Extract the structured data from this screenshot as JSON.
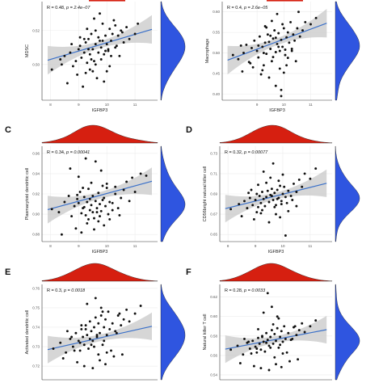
{
  "chart_data": [
    {
      "type": "scatter",
      "letter": "",
      "xlabel": "IGFBP3",
      "ylabel": "MDSC",
      "stat": {
        "r": "R = 0.48, ",
        "p": "p = 2.4e−07"
      },
      "xticks": [
        "8",
        "9",
        "10",
        "11"
      ],
      "xlim": [
        7.7,
        11.8
      ],
      "yticks": [
        "0.50",
        "0.52"
      ],
      "ylim": [
        0.479,
        0.537
      ],
      "fit": {
        "x": [
          7.9,
          11.6
        ],
        "y": [
          0.5025,
          0.5207
        ]
      },
      "x": [
        8.05,
        8.35,
        8.5,
        8.7,
        8.8,
        8.9,
        9.0,
        9.05,
        9.1,
        9.2,
        9.25,
        9.3,
        9.35,
        9.4,
        9.45,
        9.5,
        9.55,
        9.6,
        9.6,
        9.7,
        9.75,
        9.8,
        9.85,
        9.9,
        9.95,
        10.0,
        10.05,
        10.1,
        10.15,
        10.2,
        10.25,
        10.3,
        10.35,
        10.4,
        10.5,
        10.6,
        10.7,
        10.8,
        11.0,
        11.1,
        8.6,
        8.95,
        9.15,
        9.4,
        9.65,
        9.9,
        10.1,
        10.45,
        9.3,
        9.55,
        9.75,
        9.25,
        9.05,
        9.85,
        10.0,
        9.45,
        8.75,
        9.6,
        9.95,
        10.3,
        8.4,
        9.7,
        10.15,
        9.35,
        9.8,
        10.55,
        9.2,
        9.5,
        10.05
      ],
      "y": [
        0.497,
        0.503,
        0.505,
        0.507,
        0.499,
        0.502,
        0.509,
        0.511,
        0.504,
        0.507,
        0.513,
        0.501,
        0.515,
        0.506,
        0.518,
        0.509,
        0.502,
        0.512,
        0.52,
        0.507,
        0.514,
        0.51,
        0.524,
        0.506,
        0.517,
        0.512,
        0.509,
        0.521,
        0.514,
        0.518,
        0.526,
        0.51,
        0.511,
        0.517,
        0.52,
        0.513,
        0.522,
        0.515,
        0.518,
        0.524,
        0.489,
        0.494,
        0.487,
        0.497,
        0.492,
        0.49,
        0.499,
        0.505,
        0.521,
        0.527,
        0.53,
        0.495,
        0.516,
        0.514,
        0.496,
        0.503,
        0.512,
        0.5,
        0.508,
        0.523,
        0.5,
        0.516,
        0.505,
        0.509,
        0.503,
        0.519,
        0.515,
        0.496,
        0.508
      ]
    },
    {
      "type": "scatter",
      "letter": "",
      "xlabel": "IGFBP3",
      "ylabel": "Macrophage",
      "stat": {
        "r": "R = 0.4, ",
        "p": "p = 2.6e−05"
      },
      "xticks": [
        "9",
        "10",
        "11"
      ],
      "xlim": [
        7.7,
        11.8
      ],
      "yticks": [
        "0.40",
        "0.45",
        "0.50",
        "0.55",
        "0.60"
      ],
      "ylim": [
        0.385,
        0.625
      ],
      "fit": {
        "x": [
          7.9,
          11.6
        ],
        "y": [
          0.4825,
          0.5725
        ]
      },
      "x": [
        8.1,
        8.3,
        8.5,
        8.6,
        8.7,
        8.8,
        8.9,
        9.0,
        9.05,
        9.1,
        9.2,
        9.25,
        9.3,
        9.35,
        9.4,
        9.5,
        9.55,
        9.6,
        9.65,
        9.7,
        9.75,
        9.8,
        9.85,
        9.9,
        9.95,
        10.0,
        10.05,
        10.1,
        10.15,
        10.2,
        10.25,
        10.3,
        10.35,
        10.4,
        10.5,
        10.6,
        10.7,
        10.8,
        11.0,
        11.2,
        8.45,
        8.85,
        9.15,
        9.45,
        9.7,
        9.9,
        10.1,
        10.45,
        9.3,
        9.55,
        9.75,
        9.25,
        9.05,
        9.85,
        10.0,
        9.45,
        8.75,
        9.6,
        9.95,
        10.3,
        8.4,
        9.7,
        10.15,
        9.35,
        9.8,
        10.55,
        9.2,
        9.5,
        10.05,
        9.9
      ],
      "y": [
        0.495,
        0.485,
        0.5,
        0.52,
        0.478,
        0.512,
        0.53,
        0.505,
        0.489,
        0.54,
        0.515,
        0.47,
        0.525,
        0.498,
        0.545,
        0.51,
        0.48,
        0.535,
        0.555,
        0.502,
        0.522,
        0.548,
        0.462,
        0.532,
        0.515,
        0.56,
        0.495,
        0.538,
        0.55,
        0.525,
        0.575,
        0.51,
        0.545,
        0.53,
        0.56,
        0.54,
        0.555,
        0.575,
        0.57,
        0.585,
        0.455,
        0.465,
        0.448,
        0.44,
        0.42,
        0.41,
        0.47,
        0.48,
        0.565,
        0.578,
        0.595,
        0.5,
        0.518,
        0.505,
        0.452,
        0.527,
        0.475,
        0.49,
        0.57,
        0.505,
        0.518,
        0.537,
        0.488,
        0.562,
        0.515,
        0.6,
        0.458,
        0.542,
        0.508,
        0.395
      ]
    },
    {
      "type": "scatter",
      "letter": "C",
      "xlabel": "IGFBP3",
      "ylabel": "Plasmacytoid dendritic cell",
      "stat": {
        "r": "R = 0.34, ",
        "p": "p = 0.00041"
      },
      "xticks": [
        "8",
        "9",
        "10",
        "11"
      ],
      "xlim": [
        7.7,
        11.8
      ],
      "yticks": [
        "0.88",
        "0.90",
        "0.92",
        "0.94",
        "0.96"
      ],
      "ylim": [
        0.873,
        0.967
      ],
      "fit": {
        "x": [
          7.9,
          11.6
        ],
        "y": [
          0.9045,
          0.9325
        ]
      },
      "x": [
        8.05,
        8.3,
        8.5,
        8.65,
        8.75,
        8.85,
        8.95,
        9.0,
        9.05,
        9.1,
        9.15,
        9.2,
        9.25,
        9.3,
        9.35,
        9.4,
        9.45,
        9.5,
        9.55,
        9.6,
        9.65,
        9.7,
        9.75,
        9.8,
        9.85,
        9.9,
        9.95,
        10.0,
        10.1,
        10.2,
        10.3,
        10.4,
        10.5,
        10.6,
        10.7,
        10.8,
        10.9,
        11.0,
        11.2,
        11.4,
        8.4,
        8.9,
        9.1,
        9.3,
        9.55,
        9.7,
        9.9,
        10.1,
        10.45,
        9.15,
        9.45,
        9.8,
        10.3,
        8.7,
        9.6,
        9.25,
        9.0,
        9.35,
        9.85,
        10.05,
        9.5,
        8.95,
        10.2,
        9.75,
        9.4,
        9.65,
        10.0,
        9.2
      ],
      "y": [
        0.905,
        0.902,
        0.912,
        0.918,
        0.898,
        0.908,
        0.915,
        0.911,
        0.922,
        0.901,
        0.906,
        0.917,
        0.899,
        0.912,
        0.925,
        0.904,
        0.909,
        0.918,
        0.896,
        0.913,
        0.906,
        0.921,
        0.91,
        0.903,
        0.928,
        0.916,
        0.908,
        0.93,
        0.912,
        0.904,
        0.92,
        0.906,
        0.916,
        0.924,
        0.932,
        0.913,
        0.936,
        0.922,
        0.94,
        0.938,
        0.88,
        0.886,
        0.882,
        0.891,
        0.885,
        0.893,
        0.889,
        0.895,
        0.899,
        0.926,
        0.931,
        0.943,
        0.927,
        0.945,
        0.952,
        0.955,
        0.937,
        0.895,
        0.914,
        0.9,
        0.902,
        0.919,
        0.911,
        0.898,
        0.915,
        0.902,
        0.926,
        0.907
      ]
    },
    {
      "type": "scatter",
      "letter": "D",
      "xlabel": "IGFBP3",
      "ylabel": "CD56bright natural killer cell",
      "stat": {
        "r": "R = 0.32, ",
        "p": "p = 0.00077"
      },
      "xticks": [
        "8",
        "9",
        "10",
        "11"
      ],
      "xlim": [
        7.7,
        11.8
      ],
      "yticks": [
        "0.65",
        "0.67",
        "0.69",
        "0.71",
        "0.73"
      ],
      "ylim": [
        0.643,
        0.737
      ],
      "fit": {
        "x": [
          7.9,
          11.6
        ],
        "y": [
          0.6755,
          0.7005
        ]
      },
      "x": [
        8.1,
        8.4,
        8.6,
        8.7,
        8.8,
        8.9,
        9.0,
        9.05,
        9.1,
        9.15,
        9.2,
        9.25,
        9.3,
        9.35,
        9.4,
        9.45,
        9.5,
        9.55,
        9.6,
        9.65,
        9.7,
        9.75,
        9.8,
        9.85,
        9.9,
        9.95,
        10.0,
        10.05,
        10.1,
        10.15,
        10.2,
        10.3,
        10.4,
        10.5,
        10.6,
        10.7,
        10.8,
        11.0,
        11.2,
        8.5,
        8.95,
        9.2,
        9.5,
        9.75,
        9.9,
        10.2,
        10.5,
        9.3,
        9.65,
        9.85,
        9.1,
        9.55,
        9.4,
        10.0,
        8.75,
        9.25,
        9.7,
        9.95,
        10.35,
        8.85,
        9.05,
        9.6,
        9.8,
        10.1
      ],
      "y": [
        0.675,
        0.68,
        0.683,
        0.676,
        0.686,
        0.679,
        0.684,
        0.69,
        0.677,
        0.688,
        0.681,
        0.692,
        0.685,
        0.678,
        0.687,
        0.693,
        0.682,
        0.689,
        0.695,
        0.684,
        0.691,
        0.679,
        0.694,
        0.686,
        0.698,
        0.683,
        0.69,
        0.697,
        0.687,
        0.681,
        0.693,
        0.688,
        0.7,
        0.692,
        0.704,
        0.697,
        0.71,
        0.705,
        0.715,
        0.668,
        0.665,
        0.671,
        0.662,
        0.67,
        0.667,
        0.673,
        0.678,
        0.712,
        0.72,
        0.703,
        0.699,
        0.706,
        0.701,
        0.709,
        0.691,
        0.674,
        0.677,
        0.68,
        0.684,
        0.694,
        0.672,
        0.688,
        0.685,
        0.649
      ]
    },
    {
      "type": "scatter",
      "letter": "E",
      "xlabel": "",
      "ylabel": "Activated dendritic cell",
      "stat": {
        "r": "R = 0.3, ",
        "p": "p = 0.0018"
      },
      "xticks": [],
      "xlim": [
        7.7,
        11.8
      ],
      "yticks": [
        "0.72",
        "0.73",
        "0.74",
        "0.75",
        "0.76"
      ],
      "ylim": [
        0.713,
        0.762
      ],
      "fit": {
        "x": [
          7.9,
          11.6
        ],
        "y": [
          0.7285,
          0.7405
        ]
      },
      "x": [
        8.1,
        8.35,
        8.55,
        8.7,
        8.8,
        8.9,
        9.0,
        9.05,
        9.1,
        9.15,
        9.2,
        9.25,
        9.3,
        9.35,
        9.4,
        9.45,
        9.5,
        9.55,
        9.6,
        9.65,
        9.7,
        9.75,
        9.8,
        9.85,
        9.9,
        9.95,
        10.0,
        10.05,
        10.1,
        10.2,
        10.3,
        10.4,
        10.5,
        10.6,
        10.7,
        10.8,
        11.0,
        11.2,
        8.45,
        8.95,
        9.2,
        9.5,
        9.75,
        9.95,
        10.25,
        10.55,
        9.3,
        9.6,
        9.85,
        9.1,
        9.55,
        9.4,
        10.0,
        8.75,
        9.25,
        9.7,
        9.9,
        10.35,
        8.85,
        9.05,
        9.65,
        9.8,
        10.15,
        8.6,
        9.45,
        10.45
      ],
      "y": [
        0.729,
        0.732,
        0.727,
        0.734,
        0.73,
        0.737,
        0.733,
        0.728,
        0.739,
        0.735,
        0.731,
        0.741,
        0.736,
        0.729,
        0.743,
        0.738,
        0.733,
        0.74,
        0.745,
        0.735,
        0.742,
        0.737,
        0.746,
        0.731,
        0.74,
        0.744,
        0.736,
        0.748,
        0.739,
        0.742,
        0.738,
        0.746,
        0.741,
        0.744,
        0.749,
        0.743,
        0.747,
        0.751,
        0.724,
        0.722,
        0.72,
        0.719,
        0.723,
        0.721,
        0.725,
        0.726,
        0.752,
        0.755,
        0.748,
        0.741,
        0.73,
        0.734,
        0.727,
        0.735,
        0.739,
        0.726,
        0.733,
        0.737,
        0.728,
        0.732,
        0.736,
        0.75,
        0.728,
        0.738,
        0.731,
        0.747
      ]
    },
    {
      "type": "scatter",
      "letter": "F",
      "xlabel": "",
      "ylabel": "Natural killer T cell",
      "stat": {
        "r": "R = 0.28, ",
        "p": "p = 0.0033"
      },
      "xticks": [],
      "xlim": [
        7.7,
        11.8
      ],
      "yticks": [
        "0.54",
        "0.56",
        "0.58",
        "0.60",
        "0.62"
      ],
      "ylim": [
        0.535,
        0.633
      ],
      "fit": {
        "x": [
          7.9,
          11.6
        ],
        "y": [
          0.5665,
          0.5865
        ]
      },
      "x": [
        8.1,
        8.35,
        8.55,
        8.7,
        8.8,
        8.9,
        9.0,
        9.05,
        9.1,
        9.15,
        9.2,
        9.25,
        9.3,
        9.35,
        9.4,
        9.45,
        9.5,
        9.55,
        9.6,
        9.65,
        9.7,
        9.75,
        9.8,
        9.85,
        9.9,
        9.95,
        10.0,
        10.05,
        10.1,
        10.2,
        10.3,
        10.4,
        10.5,
        10.6,
        10.7,
        10.8,
        11.0,
        11.2,
        8.45,
        8.95,
        9.2,
        9.5,
        9.75,
        9.95,
        10.25,
        10.55,
        9.3,
        9.6,
        9.85,
        9.1,
        9.55,
        9.4,
        10.0,
        8.75,
        9.25,
        9.7,
        9.9,
        10.35,
        8.85,
        9.05,
        9.65,
        9.8,
        10.15,
        8.6,
        9.45,
        10.45
      ],
      "y": [
        0.566,
        0.57,
        0.561,
        0.573,
        0.567,
        0.575,
        0.569,
        0.563,
        0.578,
        0.572,
        0.566,
        0.58,
        0.574,
        0.564,
        0.583,
        0.576,
        0.57,
        0.579,
        0.586,
        0.572,
        0.582,
        0.575,
        0.588,
        0.568,
        0.579,
        0.585,
        0.574,
        0.59,
        0.577,
        0.583,
        0.576,
        0.589,
        0.581,
        0.586,
        0.593,
        0.584,
        0.59,
        0.596,
        0.552,
        0.549,
        0.547,
        0.545,
        0.551,
        0.548,
        0.554,
        0.556,
        0.604,
        0.61,
        0.598,
        0.587,
        0.568,
        0.573,
        0.562,
        0.574,
        0.579,
        0.558,
        0.571,
        0.577,
        0.562,
        0.567,
        0.592,
        0.6,
        0.563,
        0.577,
        0.624,
        0.59
      ]
    }
  ]
}
